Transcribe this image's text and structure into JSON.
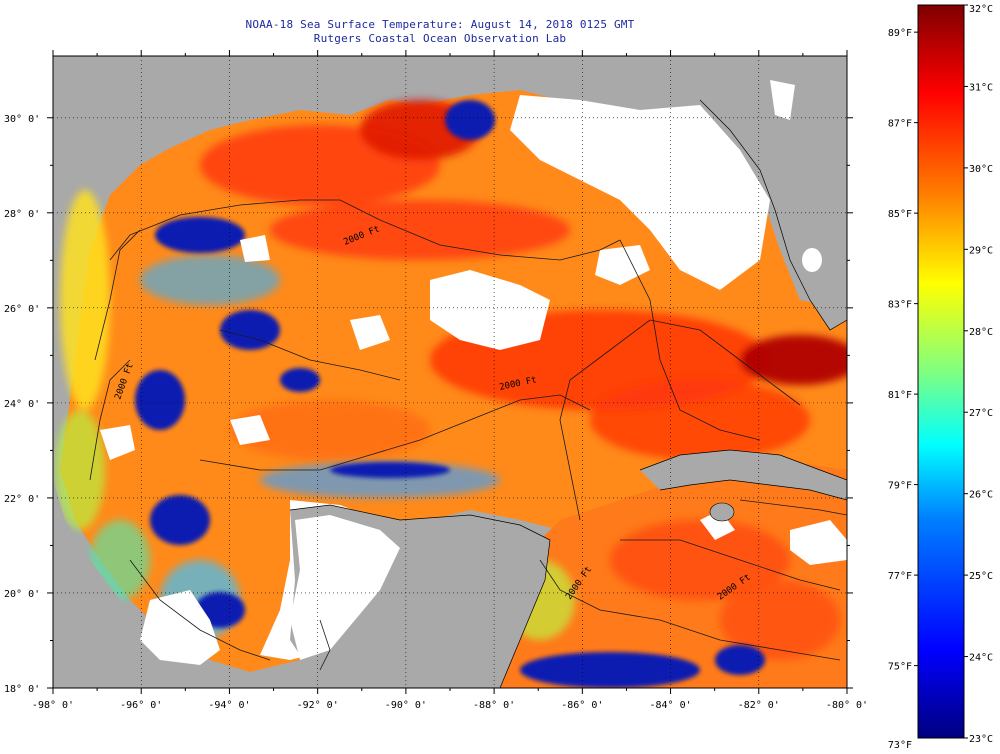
{
  "title": {
    "line1": "NOAA-18 Sea Surface Temperature:  August 14, 2018 0125 GMT",
    "line2": "Rutgers Coastal Ocean Observation Lab"
  },
  "axes": {
    "longitude_labels": [
      "-98° 0'",
      "-96° 0'",
      "-94° 0'",
      "-92° 0'",
      "-90° 0'",
      "-88° 0'",
      "-86° 0'",
      "-84° 0'",
      "-82° 0'",
      "-80° 0'"
    ],
    "latitude_labels": [
      "30° 0'",
      "28° 0'",
      "26° 0'",
      "24° 0'",
      "22° 0'",
      "20° 0'",
      "18° 0'"
    ],
    "longitude_range": [
      -98,
      -80
    ],
    "latitude_range": [
      18,
      31.3
    ]
  },
  "colorbar": {
    "fahrenheit_labels": [
      "89°F",
      "87°F",
      "85°F",
      "83°F",
      "81°F",
      "79°F",
      "77°F",
      "75°F",
      "73°F"
    ],
    "celsius_labels": [
      "32°C",
      "31°C",
      "30°C",
      "29°C",
      "28°C",
      "27°C",
      "26°C",
      "25°C",
      "24°C",
      "23°C"
    ],
    "celsius_range": [
      23,
      32
    ],
    "colors": [
      "#00007f",
      "#0000ff",
      "#0080ff",
      "#00ffff",
      "#80ff80",
      "#ffff00",
      "#ff8000",
      "#ff0000",
      "#7f0000"
    ]
  },
  "contour_labels": [
    "2000 Ft",
    "2000 Ft",
    "2000 Ft",
    "2000 Ft",
    "2000 Ft"
  ],
  "colors": {
    "land": "#a9a9a9",
    "cloud": "#ffffff",
    "title_text": "#1d2a9c"
  }
}
